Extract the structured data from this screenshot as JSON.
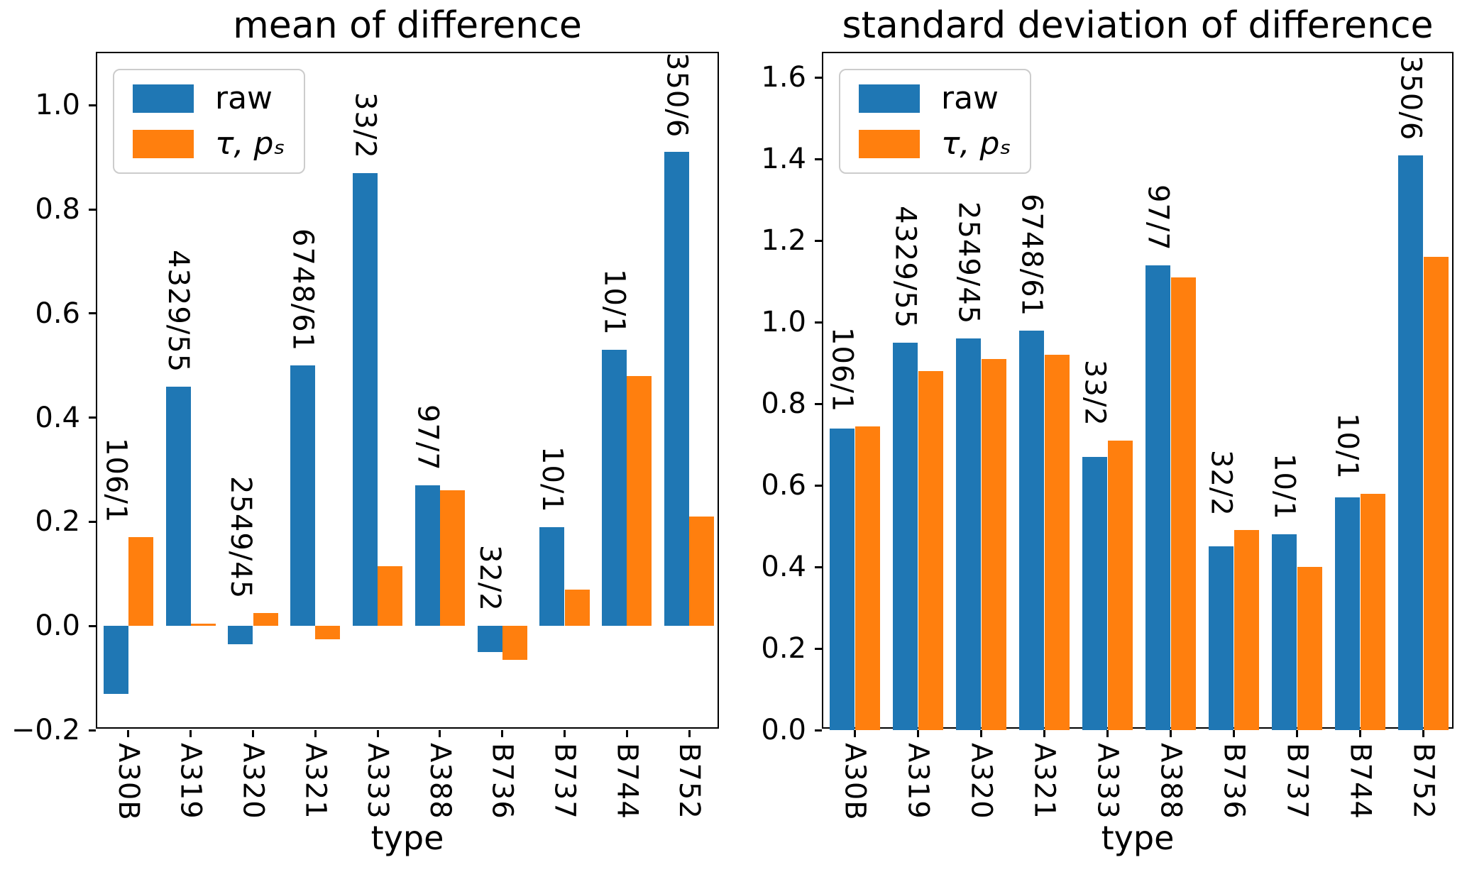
{
  "figure": {
    "background": "#ffffff"
  },
  "chart_data": [
    {
      "type": "bar",
      "title": "mean of difference",
      "xlabel": "type",
      "ylabel": "",
      "grid": false,
      "legend": {
        "location": "upper left",
        "entries": [
          "raw",
          "τ, pₛ"
        ]
      },
      "categories": [
        "A30B",
        "A319",
        "A320",
        "A321",
        "A333",
        "A388",
        "B736",
        "B737",
        "B744",
        "B752"
      ],
      "bar_annotations": [
        "106/1",
        "4329/55",
        "2549/45",
        "6748/61",
        "33/2",
        "97/7",
        "32/2",
        "10/1",
        "10/1",
        "350/6"
      ],
      "ylim": [
        -0.2,
        1.1
      ],
      "yticks": [
        {
          "v": 1.0,
          "label": "1.0"
        },
        {
          "v": 0.8,
          "label": "0.8"
        },
        {
          "v": 0.6,
          "label": "0.6"
        },
        {
          "v": 0.4,
          "label": "0.4"
        },
        {
          "v": 0.2,
          "label": "0.2"
        },
        {
          "v": 0.0,
          "label": "0.0"
        },
        {
          "v": -0.2,
          "label": "−0.2"
        }
      ],
      "series": [
        {
          "name": "raw",
          "color": "#1f77b4",
          "values": [
            -0.13,
            0.46,
            -0.035,
            0.5,
            0.87,
            0.27,
            -0.05,
            0.19,
            0.53,
            0.91
          ]
        },
        {
          "name": "τ, pₛ",
          "color": "#ff7f0e",
          "values": [
            0.17,
            0.005,
            0.025,
            -0.025,
            0.115,
            0.26,
            -0.065,
            0.07,
            0.48,
            0.21
          ]
        }
      ]
    },
    {
      "type": "bar",
      "title": "standard deviation of difference",
      "xlabel": "type",
      "ylabel": "",
      "grid": false,
      "legend": {
        "location": "upper left",
        "entries": [
          "raw",
          "τ, pₛ"
        ]
      },
      "categories": [
        "A30B",
        "A319",
        "A320",
        "A321",
        "A333",
        "A388",
        "B736",
        "B737",
        "B744",
        "B752"
      ],
      "bar_annotations": [
        "106/1",
        "4329/55",
        "2549/45",
        "6748/61",
        "33/2",
        "97/7",
        "32/2",
        "10/1",
        "10/1",
        "350/6"
      ],
      "ylim": [
        0.0,
        1.66
      ],
      "yticks": [
        {
          "v": 1.6,
          "label": "1.6"
        },
        {
          "v": 1.4,
          "label": "1.4"
        },
        {
          "v": 1.2,
          "label": "1.2"
        },
        {
          "v": 1.0,
          "label": "1.0"
        },
        {
          "v": 0.8,
          "label": "0.8"
        },
        {
          "v": 0.6,
          "label": "0.6"
        },
        {
          "v": 0.4,
          "label": "0.4"
        },
        {
          "v": 0.2,
          "label": "0.2"
        },
        {
          "v": 0.0,
          "label": "0.0"
        }
      ],
      "series": [
        {
          "name": "raw",
          "color": "#1f77b4",
          "values": [
            0.74,
            0.95,
            0.96,
            0.98,
            0.67,
            1.14,
            0.45,
            0.48,
            0.57,
            1.41
          ]
        },
        {
          "name": "τ, pₛ",
          "color": "#ff7f0e",
          "values": [
            0.745,
            0.88,
            0.91,
            0.92,
            0.71,
            1.11,
            0.49,
            0.4,
            0.58,
            1.16
          ]
        }
      ]
    }
  ]
}
